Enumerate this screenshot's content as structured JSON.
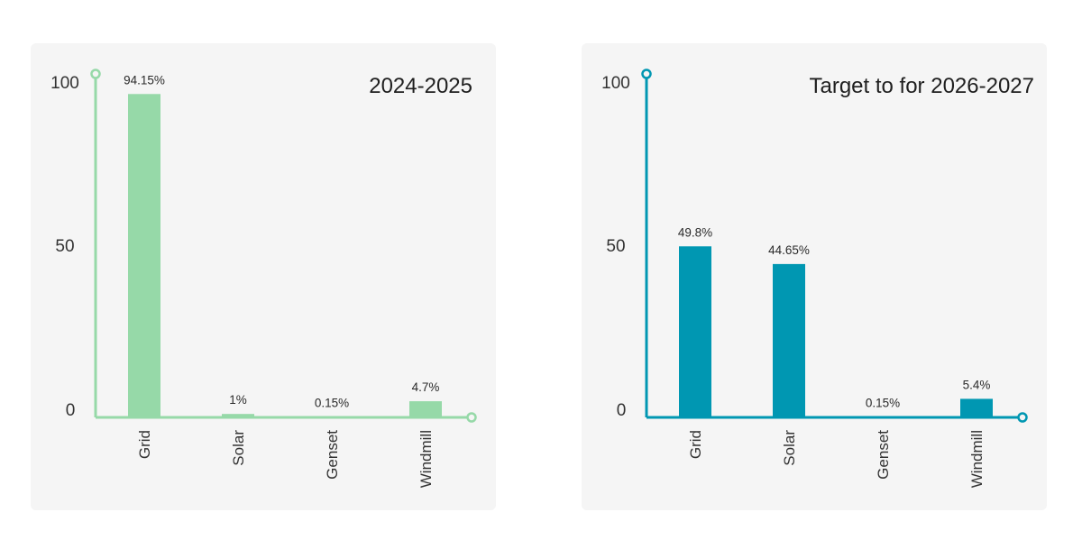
{
  "chart_data": [
    {
      "type": "bar",
      "title": "2024-2025",
      "categories": [
        "Grid",
        "Solar",
        "Genset",
        "Windmill"
      ],
      "values": [
        94.15,
        1,
        0.15,
        4.7
      ],
      "value_labels": [
        "94.15%",
        "1%",
        "0.15%",
        "4.7%"
      ],
      "xlabel": "",
      "ylabel": "",
      "ylim": [
        0,
        100
      ],
      "yticks": [
        "100",
        "50",
        "0"
      ],
      "grid": false,
      "legend": "none",
      "bar_color": "#96d9a8",
      "axis_color": "#96d9a8"
    },
    {
      "type": "bar",
      "title": "Target to for 2026-2027",
      "categories": [
        "Grid",
        "Solar",
        "Genset",
        "Windmill"
      ],
      "values": [
        49.8,
        44.65,
        0.15,
        5.4
      ],
      "value_labels": [
        "49.8%",
        "44.65%",
        "0.15%",
        "5.4%"
      ],
      "xlabel": "",
      "ylabel": "",
      "ylim": [
        0,
        100
      ],
      "yticks": [
        "100",
        "50",
        "0"
      ],
      "grid": false,
      "legend": "none",
      "bar_color": "#0097b2",
      "axis_color": "#0097b2"
    }
  ]
}
